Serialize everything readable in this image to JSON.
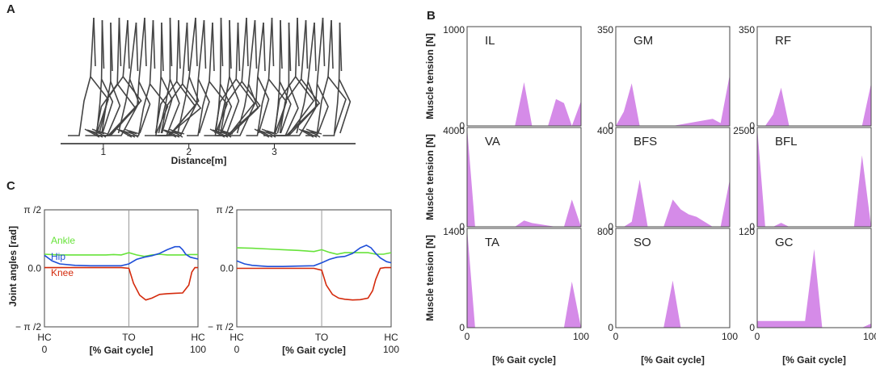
{
  "panels": {
    "a": "A",
    "b": "B",
    "c": "C"
  },
  "colors": {
    "muscle_fill": "#d58be8",
    "ankle": "#67e33a",
    "hip": "#1f4fd8",
    "knee": "#d42a0c",
    "stick": "#444444"
  },
  "chart_data": [
    {
      "panel": "A",
      "type": "line",
      "title": "",
      "xlabel": "Distance[m]",
      "x_ticks": [
        "1",
        "2",
        "3"
      ],
      "xlim": [
        0.5,
        3.95
      ],
      "description": "stick figure walking sequence",
      "stick_frames": []
    },
    {
      "panel": "C",
      "type": "line",
      "ylabel": "Joint angles [rad]",
      "y_ticks": [
        "π /2",
        "0.0",
        "− π /2"
      ],
      "ylim": [
        -1.5708,
        1.5708
      ],
      "subplots": [
        {
          "xlabel": "[% Gait cycle]",
          "event_labels": [
            "HC",
            "TO",
            "HC"
          ],
          "x_tick_labels": [
            "0",
            "100"
          ],
          "event_positions": [
            0,
            55,
            100
          ],
          "xlim": [
            0,
            100
          ],
          "series": [
            {
              "name": "Ankle",
              "x": [
                0,
                10,
                20,
                30,
                40,
                45,
                50,
                55,
                60,
                65,
                70,
                75,
                80,
                85,
                90,
                95,
                100
              ],
              "values": [
                0.38,
                0.36,
                0.36,
                0.36,
                0.36,
                0.37,
                0.36,
                0.42,
                0.36,
                0.32,
                0.36,
                0.38,
                0.36,
                0.36,
                0.36,
                0.37,
                0.37
              ]
            },
            {
              "name": "Hip",
              "x": [
                0,
                5,
                10,
                20,
                30,
                40,
                50,
                55,
                60,
                65,
                70,
                75,
                80,
                85,
                88,
                90,
                92,
                95,
                100
              ],
              "values": [
                0.35,
                0.2,
                0.12,
                0.08,
                0.07,
                0.07,
                0.07,
                0.12,
                0.24,
                0.3,
                0.34,
                0.4,
                0.5,
                0.58,
                0.58,
                0.5,
                0.38,
                0.3,
                0.25
              ]
            },
            {
              "name": "Knee",
              "x": [
                0,
                10,
                20,
                30,
                40,
                50,
                55,
                58,
                62,
                66,
                70,
                75,
                80,
                85,
                90,
                94,
                96,
                98,
                100
              ],
              "values": [
                0.02,
                0.02,
                0.02,
                0.02,
                0.02,
                0.02,
                0.0,
                -0.4,
                -0.72,
                -0.85,
                -0.8,
                -0.7,
                -0.68,
                -0.67,
                -0.66,
                -0.45,
                -0.1,
                0.02,
                0.02
              ]
            }
          ]
        },
        {
          "xlabel": "[% Gait cycle]",
          "event_labels": [
            "HC",
            "TO",
            "HC"
          ],
          "x_tick_labels": [
            "0",
            "100"
          ],
          "event_positions": [
            0,
            55,
            100
          ],
          "xlim": [
            0,
            100
          ],
          "series": [
            {
              "name": "Ankle",
              "x": [
                0,
                10,
                20,
                30,
                40,
                50,
                55,
                60,
                65,
                70,
                75,
                80,
                85,
                90,
                95,
                100
              ],
              "values": [
                0.55,
                0.54,
                0.52,
                0.5,
                0.48,
                0.45,
                0.5,
                0.43,
                0.38,
                0.42,
                0.42,
                0.42,
                0.42,
                0.38,
                0.38,
                0.42
              ]
            },
            {
              "name": "Hip",
              "x": [
                0,
                5,
                10,
                20,
                30,
                40,
                50,
                55,
                60,
                65,
                70,
                75,
                80,
                84,
                87,
                90,
                93,
                97,
                100
              ],
              "values": [
                0.2,
                0.12,
                0.08,
                0.05,
                0.05,
                0.06,
                0.07,
                0.15,
                0.24,
                0.3,
                0.32,
                0.4,
                0.55,
                0.62,
                0.55,
                0.4,
                0.28,
                0.18,
                0.15
              ]
            },
            {
              "name": "Knee",
              "x": [
                0,
                10,
                20,
                30,
                40,
                50,
                55,
                58,
                62,
                66,
                70,
                75,
                80,
                85,
                88,
                90,
                93,
                96,
                100
              ],
              "values": [
                0.0,
                0.0,
                0.0,
                0.0,
                0.0,
                0.0,
                -0.05,
                -0.45,
                -0.7,
                -0.8,
                -0.83,
                -0.85,
                -0.84,
                -0.8,
                -0.6,
                -0.3,
                0.0,
                0.02,
                0.02
              ]
            }
          ]
        }
      ]
    },
    {
      "panel": "B",
      "type": "area",
      "ylabel": "Muscle tension [N]",
      "xlabel": "[% Gait cycle]",
      "x_tick_labels": [
        "0",
        "100"
      ],
      "x": [
        0,
        7,
        14,
        21,
        28,
        35,
        42,
        50,
        57,
        64,
        71,
        78,
        85,
        92,
        100
      ],
      "muscles": [
        {
          "name": "IL",
          "ymax_label": "1000",
          "ymin_label": "0",
          "ymax": 1000,
          "values": [
            0,
            0,
            0,
            0,
            0,
            0,
            0,
            440,
            0,
            0,
            0,
            270,
            230,
            0,
            250
          ]
        },
        {
          "name": "GM",
          "ymax_label": "350",
          "ymin_label": "0",
          "ymax": 350,
          "values": [
            0,
            50,
            150,
            0,
            0,
            0,
            0,
            0,
            5,
            10,
            15,
            20,
            25,
            10,
            180
          ]
        },
        {
          "name": "RF",
          "ymax_label": "350",
          "ymin_label": "0",
          "ymax": 350,
          "values": [
            0,
            0,
            40,
            135,
            0,
            0,
            0,
            0,
            0,
            0,
            0,
            0,
            0,
            0,
            150
          ]
        },
        {
          "name": "VA",
          "ymax_label": "4000",
          "ymin_label": "0",
          "ymax": 4000,
          "values": [
            4000,
            0,
            0,
            0,
            0,
            0,
            0,
            250,
            150,
            100,
            50,
            0,
            0,
            1100,
            0
          ]
        },
        {
          "name": "BFS",
          "ymax_label": "400",
          "ymin_label": "0",
          "ymax": 400,
          "values": [
            0,
            0,
            20,
            190,
            0,
            0,
            0,
            110,
            70,
            50,
            40,
            20,
            0,
            0,
            190
          ]
        },
        {
          "name": "BFL",
          "ymax_label": "2500",
          "ymin_label": "0",
          "ymax": 2500,
          "values": [
            2500,
            0,
            0,
            100,
            0,
            0,
            0,
            0,
            0,
            0,
            0,
            0,
            0,
            1800,
            0
          ]
        },
        {
          "name": "TA",
          "ymax_label": "1400",
          "ymin_label": "0",
          "ymax": 1400,
          "values": [
            1400,
            0,
            0,
            0,
            0,
            0,
            0,
            0,
            0,
            0,
            0,
            0,
            0,
            650,
            0
          ]
        },
        {
          "name": "SO",
          "ymax_label": "800",
          "ymin_label": "0",
          "ymax": 800,
          "values": [
            0,
            0,
            0,
            0,
            0,
            0,
            0,
            380,
            0,
            0,
            0,
            0,
            0,
            0,
            0
          ]
        },
        {
          "name": "GC",
          "ymax_label": "120",
          "ymin_label": "0",
          "ymax": 120,
          "values": [
            8,
            8,
            8,
            8,
            8,
            8,
            8,
            95,
            0,
            0,
            0,
            0,
            0,
            0,
            5
          ]
        }
      ]
    }
  ]
}
